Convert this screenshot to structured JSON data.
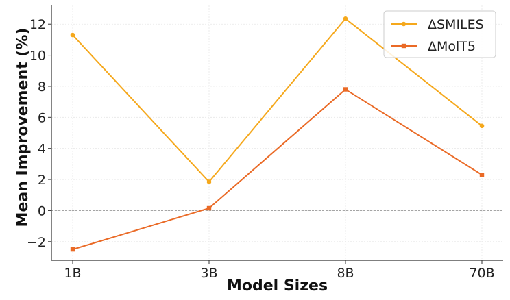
{
  "chart_data": {
    "type": "line",
    "title": "",
    "xlabel": "Model Sizes",
    "ylabel": "Mean Improvement (%)",
    "categories": [
      "1B",
      "3B",
      "8B",
      "70B"
    ],
    "ylim": [
      -3.2,
      13.2
    ],
    "yticks": [
      -2,
      0,
      2,
      4,
      6,
      8,
      10,
      12
    ],
    "ytick_labels": [
      "−2",
      "0",
      "2",
      "4",
      "6",
      "8",
      "10",
      "12"
    ],
    "grid": true,
    "reference_line": 0,
    "legend_position": "top-right",
    "series": [
      {
        "name": "ΔSMILES",
        "values": [
          11.3,
          1.85,
          12.35,
          5.45
        ],
        "color": "#f5a81c",
        "marker": "circle"
      },
      {
        "name": "ΔMolT5",
        "values": [
          -2.5,
          0.15,
          7.8,
          2.3
        ],
        "color": "#ea6a26",
        "marker": "square"
      }
    ]
  }
}
